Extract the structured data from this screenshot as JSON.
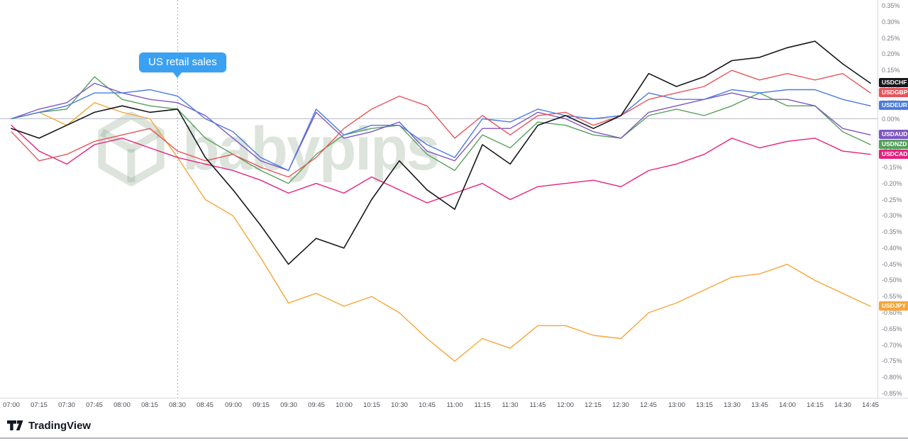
{
  "watermark": {
    "text": "babypips"
  },
  "footer": {
    "brand": "TradingView"
  },
  "chart_data": {
    "type": "line",
    "title": "",
    "xlabel": "",
    "ylabel": "",
    "y_unit": "%",
    "ylim": [
      -0.85,
      0.35
    ],
    "grid": false,
    "zero_line": true,
    "legend_position": "right-price-labels",
    "y_tick_labels": [
      "0.35%",
      "0.30%",
      "0.25%",
      "0.20%",
      "0.15%",
      "0.10%",
      "0.05%",
      "0.00%",
      "-0.05%",
      "-0.10%",
      "-0.15%",
      "-0.20%",
      "-0.25%",
      "-0.30%",
      "-0.35%",
      "-0.40%",
      "-0.45%",
      "-0.50%",
      "-0.55%",
      "-0.60%",
      "-0.65%",
      "-0.70%",
      "-0.75%",
      "-0.80%",
      "-0.85%"
    ],
    "x": [
      "07:00",
      "07:15",
      "07:30",
      "07:45",
      "08:00",
      "08:15",
      "08:30",
      "08:45",
      "09:00",
      "09:15",
      "09:30",
      "09:45",
      "10:00",
      "10:15",
      "10:30",
      "10:45",
      "11:00",
      "11:15",
      "11:30",
      "11:45",
      "12:00",
      "12:15",
      "12:30",
      "12:45",
      "13:00",
      "13:15",
      "13:30",
      "13:45",
      "14:00",
      "14:15",
      "14:30",
      "14:45"
    ],
    "annotation": {
      "label": "US retail sales",
      "x_time": "08:30",
      "color": "#3aa1f2"
    },
    "series": [
      {
        "name": "USDCHF",
        "color": "#16181c",
        "values": [
          -0.03,
          -0.06,
          -0.02,
          0.02,
          0.04,
          0.02,
          0.03,
          -0.12,
          -0.22,
          -0.33,
          -0.45,
          -0.37,
          -0.4,
          -0.25,
          -0.13,
          -0.22,
          -0.28,
          -0.08,
          -0.14,
          -0.02,
          0.01,
          -0.03,
          0.01,
          0.14,
          0.1,
          0.13,
          0.18,
          0.19,
          0.22,
          0.24,
          0.17,
          0.11
        ]
      },
      {
        "name": "USDGBP",
        "color": "#e8555a",
        "values": [
          -0.04,
          -0.13,
          -0.11,
          -0.07,
          -0.05,
          -0.03,
          -0.1,
          -0.13,
          -0.11,
          -0.15,
          -0.18,
          -0.12,
          -0.03,
          0.03,
          0.07,
          0.04,
          -0.06,
          0.01,
          -0.05,
          0.01,
          0.02,
          -0.02,
          0.01,
          0.06,
          0.08,
          0.1,
          0.15,
          0.12,
          0.14,
          0.12,
          0.14,
          0.08
        ]
      },
      {
        "name": "USDEUR",
        "color": "#4a7be0",
        "values": [
          0.0,
          0.02,
          0.04,
          0.08,
          0.08,
          0.09,
          0.07,
          0.0,
          -0.04,
          -0.12,
          -0.16,
          0.03,
          -0.05,
          -0.02,
          -0.02,
          -0.08,
          -0.12,
          0.0,
          -0.01,
          0.03,
          0.01,
          0.0,
          0.01,
          0.08,
          0.06,
          0.06,
          0.09,
          0.08,
          0.09,
          0.09,
          0.06,
          0.04
        ]
      },
      {
        "name": "USDAUD",
        "color": "#7e57c2",
        "values": [
          0.0,
          0.03,
          0.05,
          0.11,
          0.08,
          0.06,
          0.05,
          0.01,
          -0.06,
          -0.13,
          -0.16,
          0.02,
          -0.06,
          -0.04,
          -0.01,
          -0.1,
          -0.13,
          -0.03,
          -0.03,
          0.02,
          0.0,
          -0.04,
          -0.06,
          0.02,
          0.04,
          0.06,
          0.08,
          0.06,
          0.06,
          0.04,
          -0.03,
          -0.05
        ]
      },
      {
        "name": "USDNZD",
        "color": "#56a05c",
        "values": [
          0.0,
          0.02,
          0.03,
          0.13,
          0.06,
          0.04,
          0.03,
          -0.06,
          -0.11,
          -0.16,
          -0.2,
          -0.11,
          -0.05,
          -0.03,
          -0.02,
          -0.11,
          -0.16,
          -0.05,
          -0.09,
          -0.01,
          -0.02,
          -0.05,
          -0.06,
          0.01,
          0.03,
          0.01,
          0.04,
          0.08,
          0.04,
          0.04,
          -0.04,
          -0.08
        ]
      },
      {
        "name": "USDCAD",
        "color": "#e6207e",
        "values": [
          -0.02,
          -0.1,
          -0.14,
          -0.08,
          -0.06,
          -0.09,
          -0.12,
          -0.14,
          -0.16,
          -0.19,
          -0.23,
          -0.2,
          -0.23,
          -0.18,
          -0.22,
          -0.26,
          -0.23,
          -0.2,
          -0.25,
          -0.21,
          -0.2,
          -0.19,
          -0.21,
          -0.16,
          -0.14,
          -0.11,
          -0.06,
          -0.09,
          -0.07,
          -0.06,
          -0.1,
          -0.11
        ]
      },
      {
        "name": "USDJPY",
        "color": "#f6a53a",
        "values": [
          0.0,
          0.02,
          -0.02,
          0.05,
          0.02,
          0.0,
          -0.12,
          -0.25,
          -0.3,
          -0.43,
          -0.57,
          -0.54,
          -0.58,
          -0.55,
          -0.6,
          -0.68,
          -0.75,
          -0.68,
          -0.71,
          -0.64,
          -0.64,
          -0.67,
          -0.68,
          -0.6,
          -0.57,
          -0.53,
          -0.49,
          -0.48,
          -0.45,
          -0.5,
          -0.54,
          -0.58
        ]
      }
    ]
  }
}
